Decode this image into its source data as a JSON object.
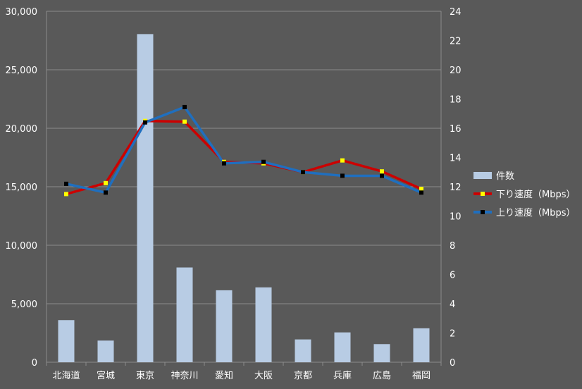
{
  "chart_data": {
    "type": "bar",
    "categories": [
      "北海道",
      "宮城",
      "東京",
      "神奈川",
      "愛知",
      "大阪",
      "京都",
      "兵庫",
      "広島",
      "福岡"
    ],
    "series": [
      {
        "name": "件数",
        "kind": "bar",
        "axis": "left",
        "color": "#b8cce4",
        "values": [
          3600,
          1850,
          28050,
          8100,
          6150,
          6400,
          1950,
          2550,
          1550,
          2900
        ]
      },
      {
        "name": "下り速度（Mbps）",
        "kind": "line",
        "axis": "right",
        "color": "#cc0000",
        "marker_color": "#ffff00",
        "values": [
          11.5,
          12.25,
          16.5,
          16.45,
          13.7,
          13.6,
          13.0,
          13.8,
          13.05,
          11.85
        ]
      },
      {
        "name": "上り速度（Mbps）",
        "kind": "line",
        "axis": "right",
        "color": "#1f6fbf",
        "marker_color": "#000000",
        "values": [
          12.2,
          11.6,
          16.4,
          17.45,
          13.6,
          13.7,
          13.0,
          12.75,
          12.75,
          11.6
        ]
      }
    ],
    "y_left": {
      "lim": [
        0,
        30000
      ],
      "ticks": [
        0,
        5000,
        10000,
        15000,
        20000,
        25000,
        30000
      ],
      "tick_labels": [
        "0",
        "5,000",
        "10,000",
        "15,000",
        "20,000",
        "25,000",
        "30,000"
      ]
    },
    "y_right": {
      "lim": [
        0,
        24
      ],
      "ticks": [
        0,
        2,
        4,
        6,
        8,
        10,
        12,
        14,
        16,
        18,
        20,
        22,
        24
      ],
      "tick_labels": [
        "0",
        "2",
        "4",
        "6",
        "8",
        "10",
        "12",
        "14",
        "16",
        "18",
        "20",
        "22",
        "24"
      ]
    },
    "title": "",
    "xlabel": "",
    "ylabel": "",
    "grid": true,
    "legend_position": "right",
    "colors": {
      "background": "#595959",
      "grid": "#8c8c8c",
      "text": "#ffffff"
    }
  }
}
